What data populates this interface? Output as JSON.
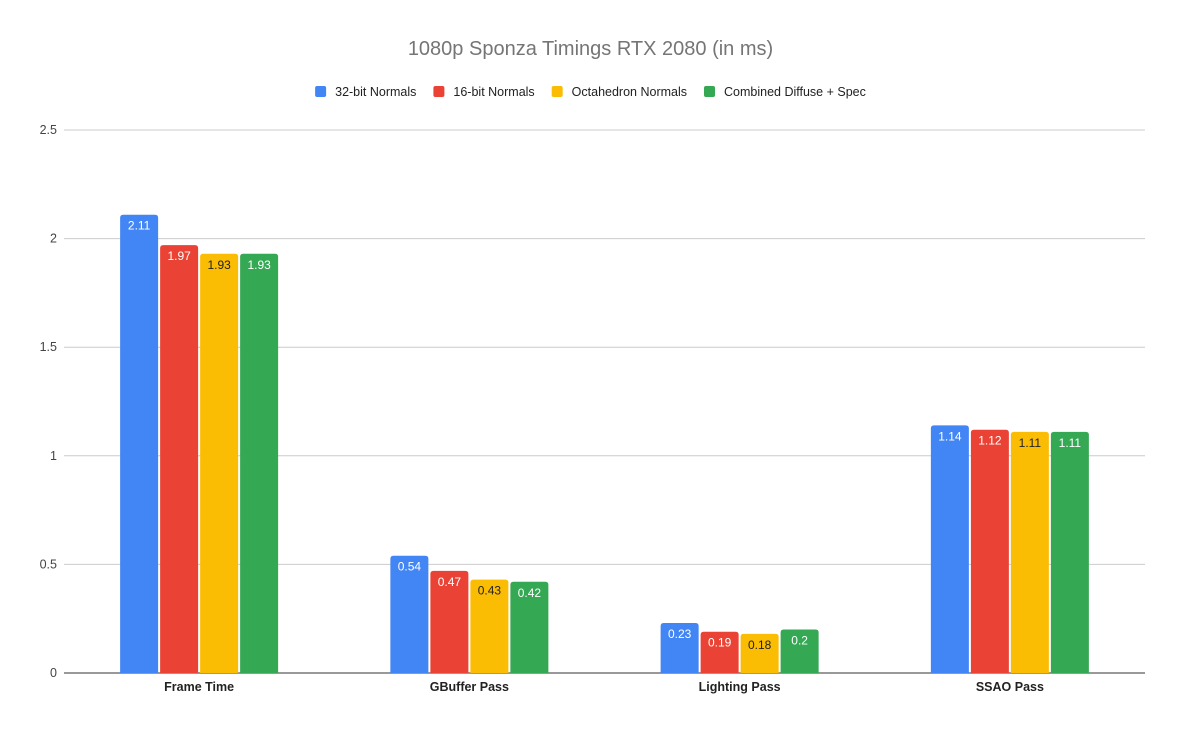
{
  "chart_data": {
    "type": "bar",
    "title": "1080p Sponza Timings RTX 2080 (in ms)",
    "xlabel": "",
    "ylabel": "",
    "categories": [
      "Frame Time",
      "GBuffer Pass",
      "Lighting Pass",
      "SSAO Pass"
    ],
    "series": [
      {
        "name": "32-bit Normals",
        "color": "#4285f4",
        "label_color": "#ffffff",
        "values": [
          2.11,
          0.54,
          0.23,
          1.14
        ]
      },
      {
        "name": "16-bit Normals",
        "color": "#ea4335",
        "label_color": "#ffffff",
        "values": [
          1.97,
          0.47,
          0.19,
          1.12
        ]
      },
      {
        "name": "Octahedron Normals",
        "color": "#fbbc04",
        "label_color": "#222222",
        "values": [
          1.93,
          0.43,
          0.18,
          1.11
        ]
      },
      {
        "name": "Combined Diffuse + Spec",
        "color": "#34a853",
        "label_color": "#ffffff",
        "values": [
          1.93,
          0.42,
          0.2,
          1.11
        ]
      }
    ],
    "ylim": [
      0,
      2.5
    ],
    "yticks": [
      "0",
      "0.5",
      "1",
      "1.5",
      "2",
      "2.5"
    ],
    "data_labels": [
      [
        "2.11",
        "0.54",
        "0.23",
        "1.14"
      ],
      [
        "1.97",
        "0.47",
        "0.19",
        "1.12"
      ],
      [
        "1.93",
        "0.43",
        "0.18",
        "1.11"
      ],
      [
        "1.93",
        "0.42",
        "0.2",
        "1.11"
      ]
    ],
    "grid": true,
    "legend_position": "top-center"
  }
}
